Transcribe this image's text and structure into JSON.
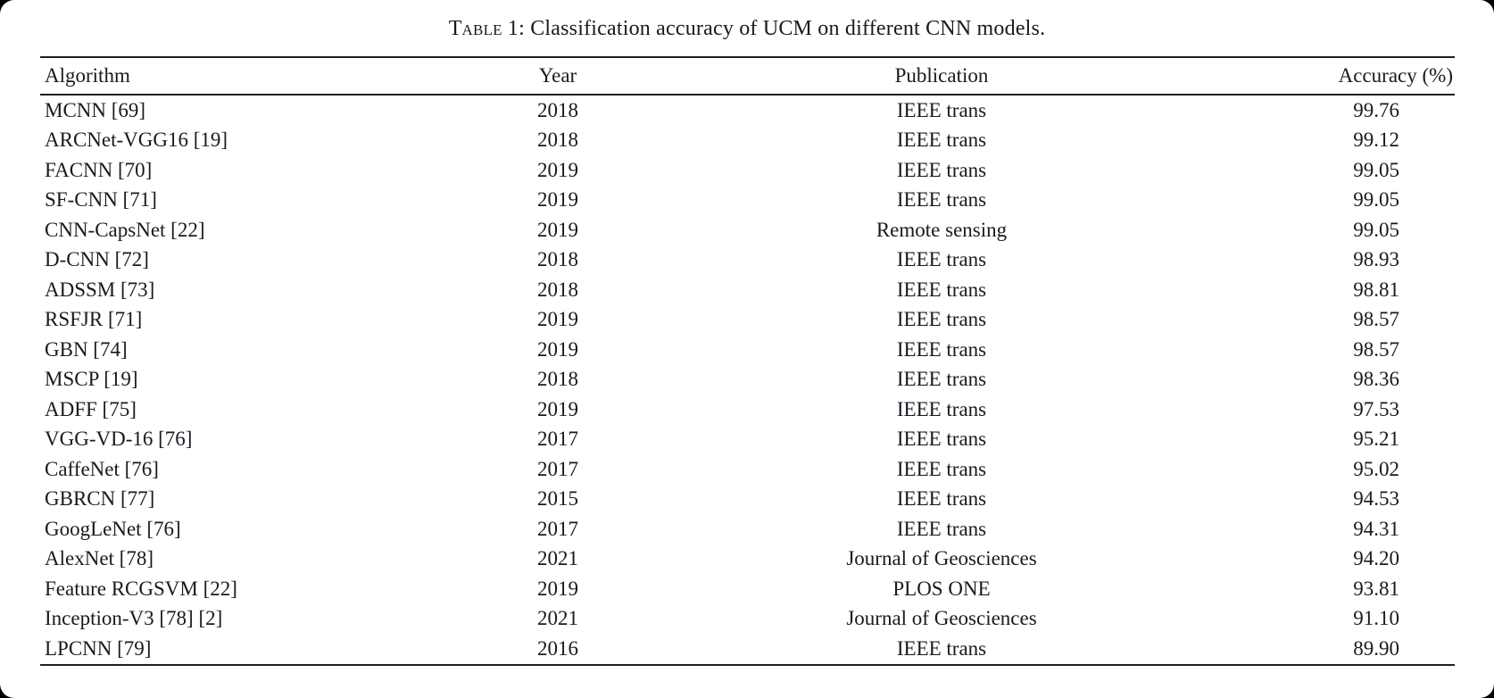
{
  "caption": {
    "label_prefix": "Table 1:",
    "text": " Classification accuracy of UCM on different CNN models."
  },
  "colors": {
    "text": "#191922",
    "rule": "#1f1f1f",
    "background": "#ffffff"
  },
  "table": {
    "headers": {
      "algorithm": "Algorithm",
      "year": "Year",
      "publication": "Publication",
      "accuracy": "Accuracy (%)"
    },
    "rows": [
      {
        "algorithm": "MCNN [69]",
        "year": "2018",
        "publication": "IEEE trans",
        "accuracy": "99.76"
      },
      {
        "algorithm": "ARCNet-VGG16 [19]",
        "year": "2018",
        "publication": "IEEE trans",
        "accuracy": "99.12"
      },
      {
        "algorithm": "FACNN [70]",
        "year": "2019",
        "publication": "IEEE trans",
        "accuracy": "99.05"
      },
      {
        "algorithm": "SF-CNN [71]",
        "year": "2019",
        "publication": "IEEE trans",
        "accuracy": "99.05"
      },
      {
        "algorithm": "CNN-CapsNet [22]",
        "year": "2019",
        "publication": "Remote sensing",
        "accuracy": "99.05"
      },
      {
        "algorithm": "D-CNN [72]",
        "year": "2018",
        "publication": "IEEE trans",
        "accuracy": "98.93"
      },
      {
        "algorithm": "ADSSM [73]",
        "year": "2018",
        "publication": "IEEE trans",
        "accuracy": "98.81"
      },
      {
        "algorithm": "RSFJR [71]",
        "year": "2019",
        "publication": "IEEE trans",
        "accuracy": "98.57"
      },
      {
        "algorithm": "GBN [74]",
        "year": "2019",
        "publication": "IEEE trans",
        "accuracy": "98.57"
      },
      {
        "algorithm": "MSCP [19]",
        "year": "2018",
        "publication": "IEEE trans",
        "accuracy": "98.36"
      },
      {
        "algorithm": "ADFF [75]",
        "year": "2019",
        "publication": "IEEE trans",
        "accuracy": "97.53"
      },
      {
        "algorithm": "VGG-VD-16 [76]",
        "year": "2017",
        "publication": "IEEE trans",
        "accuracy": "95.21"
      },
      {
        "algorithm": "CaffeNet [76]",
        "year": "2017",
        "publication": "IEEE trans",
        "accuracy": "95.02"
      },
      {
        "algorithm": "GBRCN [77]",
        "year": "2015",
        "publication": "IEEE trans",
        "accuracy": "94.53"
      },
      {
        "algorithm": "GoogLeNet [76]",
        "year": "2017",
        "publication": "IEEE trans",
        "accuracy": "94.31"
      },
      {
        "algorithm": "AlexNet [78]",
        "year": "2021",
        "publication": "Journal of Geosciences",
        "accuracy": "94.20"
      },
      {
        "algorithm": "Feature RCGSVM [22]",
        "year": "2019",
        "publication": "PLOS ONE",
        "accuracy": "93.81"
      },
      {
        "algorithm": "Inception-V3 [78] [2]",
        "year": "2021",
        "publication": "Journal of Geosciences",
        "accuracy": "91.10"
      },
      {
        "algorithm": "LPCNN [79]",
        "year": "2016",
        "publication": "IEEE trans",
        "accuracy": "89.90"
      }
    ]
  }
}
